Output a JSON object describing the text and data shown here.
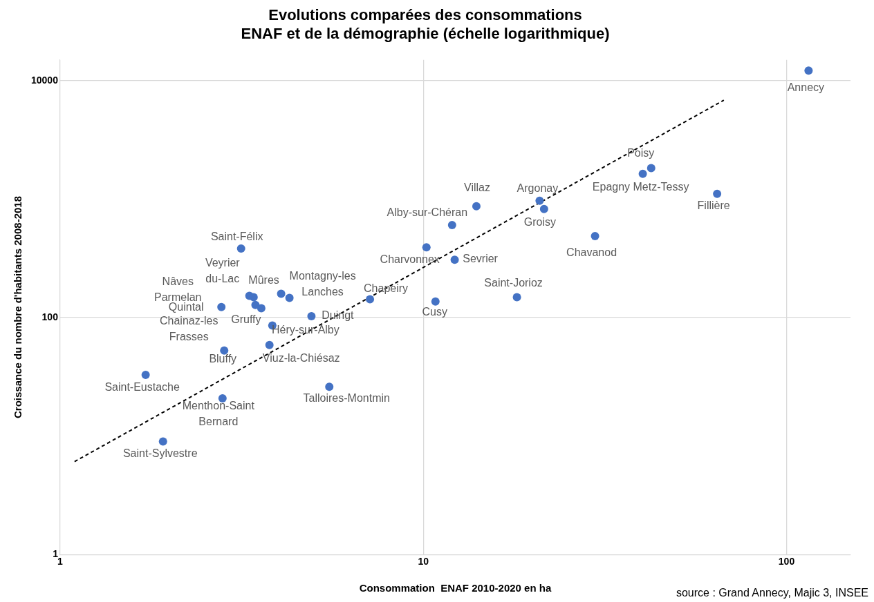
{
  "chart_data": {
    "type": "scatter",
    "title": "Evolutions comparées des consommations\nENAF et de la démographie (échelle logarithmique)",
    "xlabel": "Consommation  ENAF 2010-2020 en ha",
    "ylabel": "Croissance du nombre d'habitants 2008-2018",
    "log": "xy",
    "grid": true,
    "marker": "circle",
    "xlim": [
      1,
      150
    ],
    "xticks": [
      1,
      10,
      100
    ],
    "ylim": [
      1,
      15000
    ],
    "yticks": [
      1,
      100,
      10000
    ],
    "series": [
      {
        "type": "scatter",
        "color": "#4472c4",
        "x": [
          115,
          42.4,
          40.2,
          64.4,
          14.0,
          20.9,
          21.5,
          12.0,
          29.7,
          10.2,
          12.2,
          3.15,
          18.1,
          10.8,
          7.13,
          4.92,
          5.51,
          3.32,
          3.41,
          4.06,
          4.28,
          3.45,
          3.58,
          2.78,
          3.84,
          3.77,
          2.83,
          1.72,
          2.8,
          1.92
        ],
        "values": [
          12200,
          1830,
          1640,
          1110,
          871,
          970,
          826,
          605,
          488,
          393,
          308,
          383,
          149,
          137,
          143,
          103,
          26.1,
          153,
          149,
          159,
          147,
          128,
          120,
          123,
          85.7,
          58.7,
          52.7,
          32.9,
          20.8,
          9.0
        ]
      },
      {
        "type": "line",
        "color": "#000000",
        "line_style": "dashed",
        "marker": "none",
        "x": [
          1.096,
          67.2
        ],
        "values": [
          6.09,
          6855
        ]
      }
    ],
    "annotations": [
      {
        "text": "Annecy",
        "x": 115,
        "y": 12200
      },
      {
        "text": "Poisy",
        "x": 42.4,
        "y": 1830
      },
      {
        "text": "Epagny Metz-Tessy",
        "x": 40.2,
        "y": 1640
      },
      {
        "text": "Fillière",
        "x": 64.4,
        "y": 1110
      },
      {
        "text": "Villaz",
        "x": 14.0,
        "y": 871
      },
      {
        "text": "Argonay",
        "x": 20.9,
        "y": 970
      },
      {
        "text": "Groisy",
        "x": 21.5,
        "y": 826
      },
      {
        "text": "Alby-sur-Chéran",
        "x": 12.0,
        "y": 605
      },
      {
        "text": "Chavanod",
        "x": 29.7,
        "y": 488
      },
      {
        "text": "Charvonnex",
        "x": 10.2,
        "y": 393
      },
      {
        "text": "Sevrier",
        "x": 12.2,
        "y": 308
      },
      {
        "text": "Saint-Félix",
        "x": 3.15,
        "y": 383
      },
      {
        "text": "Saint-Jorioz",
        "x": 18.1,
        "y": 149
      },
      {
        "text": "Cusy",
        "x": 10.8,
        "y": 137
      },
      {
        "text": "Chapeiry",
        "x": 7.13,
        "y": 143
      },
      {
        "text": "Duingt",
        "x": 4.92,
        "y": 103
      },
      {
        "text": "Talloires-Montmin",
        "x": 5.51,
        "y": 26.1
      },
      "Nâves Parmelan",
      {
        "text": "Veyrier du-Lac",
        "x": 3.41,
        "y": 149
      },
      {
        "text": "Mûres",
        "x": 4.06,
        "y": 159
      },
      {
        "text": "Montagny-les Lanches",
        "x": 4.28,
        "y": 147
      },
      "Chainaz-les Frasses",
      {
        "text": "Gruffy",
        "x": 3.58,
        "y": 120
      },
      {
        "text": "Quintal",
        "x": 2.78,
        "y": 123
      },
      {
        "text": "Héry-sur-Alby",
        "x": 3.84,
        "y": 85.7
      },
      {
        "text": "Viuz-la-Chiésaz",
        "x": 3.77,
        "y": 58.7
      },
      {
        "text": "Bluffy",
        "x": 2.83,
        "y": 52.7
      },
      {
        "text": "Saint-Eustache",
        "x": 1.72,
        "y": 32.9
      },
      {
        "text": "Menthon-Saint Bernard",
        "x": 2.8,
        "y": 20.8
      },
      {
        "text": "Saint-Sylvestre",
        "x": 1.92,
        "y": 9.0
      },
      "source : Grand Annecy, Majic 3, INSEE"
    ]
  }
}
